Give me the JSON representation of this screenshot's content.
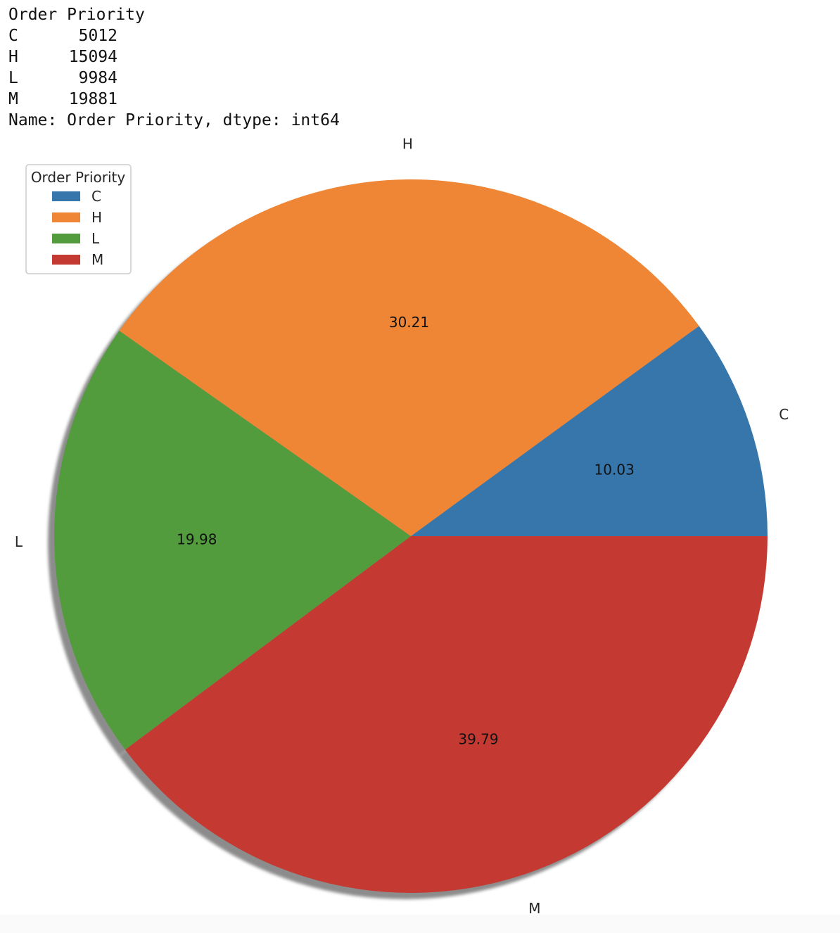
{
  "output_text": {
    "header": "Order Priority",
    "rows": [
      {
        "key": "C",
        "value": "5012"
      },
      {
        "key": "H",
        "value": "15094"
      },
      {
        "key": "L",
        "value": "9984"
      },
      {
        "key": "M",
        "value": "19881"
      }
    ],
    "footer": "Name: Order Priority, dtype: int64"
  },
  "chart_data": {
    "type": "pie",
    "categories": [
      "C",
      "H",
      "L",
      "M"
    ],
    "values": [
      5012,
      15094,
      9984,
      19881
    ],
    "percent_labels": [
      "10.03",
      "30.21",
      "19.98",
      "39.79"
    ],
    "colors": [
      "#3776ab",
      "#ef8636",
      "#539c3d",
      "#c43a33"
    ],
    "start_angle_deg": 0,
    "shadow": true,
    "legend": {
      "title": "Order Priority",
      "entries": [
        "C",
        "H",
        "L",
        "M"
      ],
      "placement": "upper-left"
    }
  }
}
